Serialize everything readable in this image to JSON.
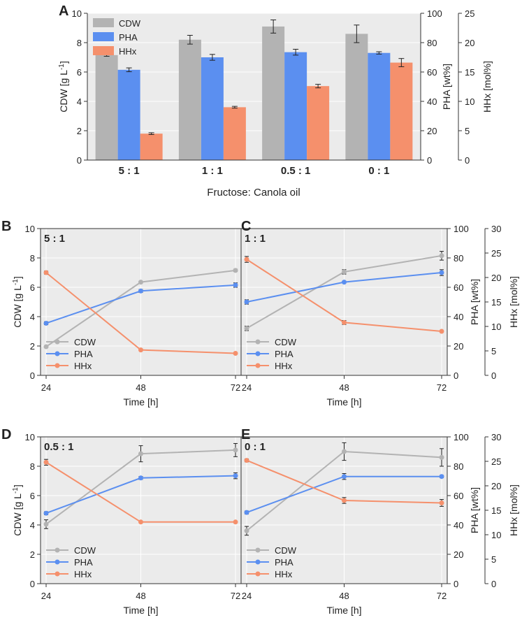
{
  "colors": {
    "cdw": "#b3b3b3",
    "pha": "#5b8ff0",
    "hhx": "#f5906c",
    "plot_bg": "#ebebeb",
    "grid": "#ffffff",
    "axis": "#333333",
    "error": "#222222"
  },
  "chart_data": [
    {
      "panel": "A",
      "type": "bar",
      "xlabel": "Fructose: Canola oil",
      "categories": [
        "5 : 1",
        "1 : 1",
        "0.5 : 1",
        "0 : 1"
      ],
      "axes": {
        "left": {
          "label": "CDW [g L",
          "label_sup": "-1",
          "label_end": "]",
          "ylim": [
            0,
            10
          ],
          "ticks": [
            "0",
            "2",
            "4",
            "6",
            "8",
            "10"
          ]
        },
        "right1": {
          "label": "PHA [wt%]",
          "ylim": [
            0,
            100
          ],
          "ticks": [
            "0",
            "20",
            "40",
            "60",
            "80",
            "100"
          ]
        },
        "right2": {
          "label": "HHx [mol%]",
          "ylim": [
            0,
            25
          ],
          "ticks": [
            "0",
            "5",
            "10",
            "15",
            "20",
            "25"
          ]
        }
      },
      "series": [
        {
          "name": "CDW",
          "axis": "left",
          "values": [
            7.15,
            8.2,
            9.1,
            8.6
          ],
          "errors": [
            0.08,
            0.3,
            0.45,
            0.6
          ]
        },
        {
          "name": "PHA",
          "axis": "right1",
          "values": [
            61.5,
            70.0,
            73.5,
            73.0
          ],
          "errors": [
            1.3,
            2.0,
            2.0,
            0.8
          ]
        },
        {
          "name": "HHx",
          "axis": "right2",
          "values": [
            4.5,
            9.0,
            12.6,
            16.6
          ],
          "errors": [
            0.15,
            0.15,
            0.3,
            0.7
          ]
        }
      ],
      "legend": [
        "CDW",
        "PHA",
        "HHx"
      ],
      "legend_position": "top-left"
    },
    {
      "panel": "B",
      "type": "line",
      "annotation": "5 : 1",
      "x": [
        24,
        48,
        72
      ],
      "xlabel": "Time [h]",
      "series": [
        {
          "name": "CDW",
          "axis": "left",
          "values": [
            1.95,
            6.35,
            7.15
          ],
          "errors": [
            0.05,
            0.05,
            0.08
          ]
        },
        {
          "name": "PHA",
          "axis": "right1",
          "values": [
            35.5,
            57.5,
            61.5
          ],
          "errors": [
            1.0,
            1.0,
            1.5
          ]
        },
        {
          "name": "HHx",
          "axis": "right2",
          "values": [
            21.0,
            5.2,
            4.5
          ],
          "errors": [
            0.3,
            0.15,
            0.15
          ]
        }
      ]
    },
    {
      "panel": "C",
      "type": "line",
      "annotation": "1 : 1",
      "x": [
        24,
        48,
        72
      ],
      "xlabel": "Time [h]",
      "series": [
        {
          "name": "CDW",
          "axis": "left",
          "values": [
            3.2,
            7.05,
            8.15
          ],
          "errors": [
            0.15,
            0.15,
            0.3
          ]
        },
        {
          "name": "PHA",
          "axis": "right1",
          "values": [
            50.0,
            63.5,
            70.0
          ],
          "errors": [
            1.5,
            0.5,
            2.0
          ]
        },
        {
          "name": "HHx",
          "axis": "right2",
          "values": [
            23.7,
            10.8,
            9.0
          ],
          "errors": [
            0.6,
            0.4,
            0.15
          ]
        }
      ]
    },
    {
      "panel": "D",
      "type": "line",
      "annotation": "0.5 : 1",
      "x": [
        24,
        48,
        72
      ],
      "xlabel": "Time [h]",
      "series": [
        {
          "name": "CDW",
          "axis": "left",
          "values": [
            4.05,
            8.85,
            9.1
          ],
          "errors": [
            0.3,
            0.55,
            0.45
          ]
        },
        {
          "name": "PHA",
          "axis": "right1",
          "values": [
            48.0,
            72.0,
            73.5
          ],
          "errors": [
            1.0,
            1.0,
            2.0
          ]
        },
        {
          "name": "HHx",
          "axis": "right2",
          "values": [
            24.8,
            12.6,
            12.6
          ],
          "errors": [
            0.6,
            0.15,
            0.15
          ]
        }
      ]
    },
    {
      "panel": "E",
      "type": "line",
      "annotation": "0 : 1",
      "x": [
        24,
        48,
        72
      ],
      "xlabel": "Time [h]",
      "series": [
        {
          "name": "CDW",
          "axis": "left",
          "values": [
            3.6,
            9.0,
            8.6
          ],
          "errors": [
            0.3,
            0.6,
            0.6
          ]
        },
        {
          "name": "PHA",
          "axis": "right1",
          "values": [
            48.5,
            73.0,
            73.0
          ],
          "errors": [
            1.0,
            2.0,
            0.8
          ]
        },
        {
          "name": "HHx",
          "axis": "right2",
          "values": [
            25.2,
            17.0,
            16.5
          ],
          "errors": [
            0.3,
            0.6,
            0.7
          ]
        }
      ]
    }
  ],
  "line_axes": {
    "left": {
      "label": "CDW [g L",
      "label_sup": "-1",
      "label_end": "]",
      "ylim": [
        0,
        10
      ],
      "ticks": [
        "0",
        "2",
        "4",
        "6",
        "8",
        "10"
      ]
    },
    "right1": {
      "label": "PHA [wt%]",
      "ylim": [
        0,
        100
      ],
      "ticks": [
        "0",
        "20",
        "40",
        "60",
        "80",
        "100"
      ]
    },
    "right2": {
      "label": "HHx [mol%]",
      "ylim": [
        0,
        30
      ],
      "ticks": [
        "0",
        "5",
        "10",
        "15",
        "20",
        "25",
        "30"
      ]
    },
    "xticks": [
      "24",
      "48",
      "72"
    ],
    "legend": [
      "CDW",
      "PHA",
      "HHx"
    ],
    "legend_position": "bottom-left"
  }
}
